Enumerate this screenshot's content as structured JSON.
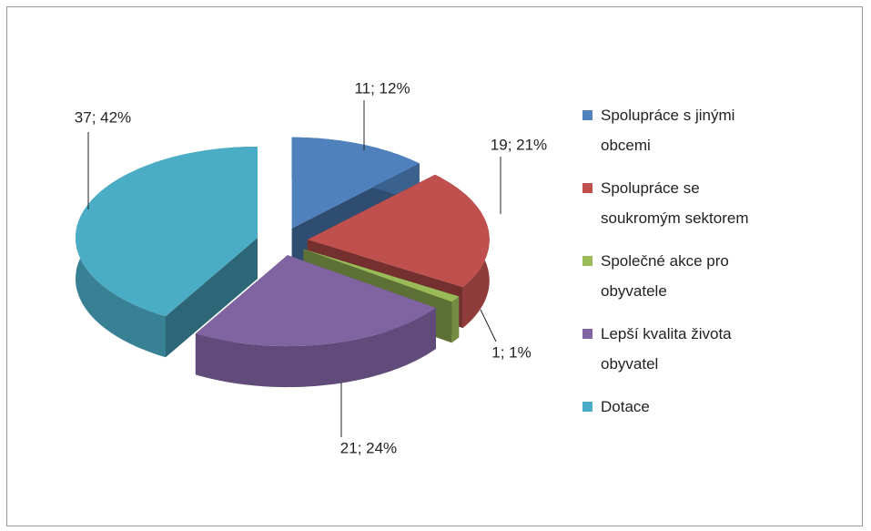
{
  "chart_data": {
    "type": "pie3d",
    "categories": [
      "Spolupráce s jinými obcemi",
      "Spolupráce se soukromým sektorem",
      "Společné akce pro obyvatele",
      "Lepší kvalita života obyvatel",
      "Dotace"
    ],
    "values": [
      11,
      19,
      1,
      21,
      37
    ],
    "value_labels": [
      "11; 12%",
      "19; 21%",
      "1; 1%",
      "21; 24%",
      "37; 42%"
    ],
    "colors": [
      "#4f81bd",
      "#c0504d",
      "#9bbb59",
      "#8064a2",
      "#4bacc6"
    ],
    "legend": "right"
  }
}
